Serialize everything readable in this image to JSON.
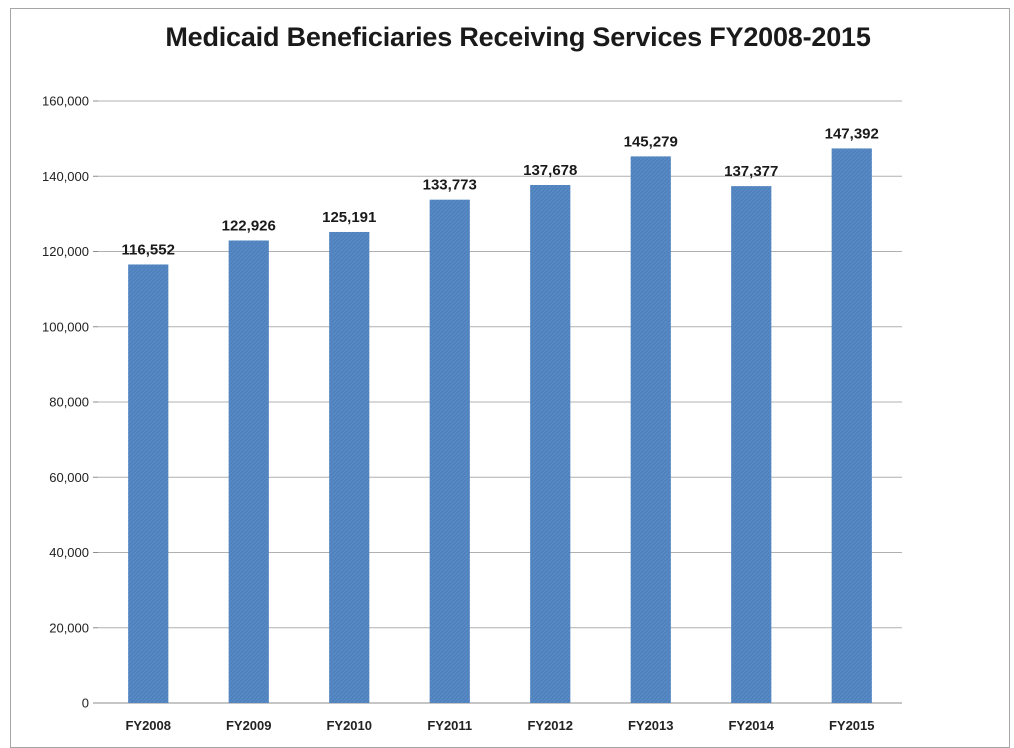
{
  "chart_data": {
    "type": "bar",
    "title": "Medicaid Beneficiaries Receiving Services FY2008-2015",
    "xlabel": "",
    "ylabel": "",
    "categories": [
      "FY2008",
      "FY2009",
      "FY2010",
      "FY2011",
      "FY2012",
      "FY2013",
      "FY2014",
      "FY2015"
    ],
    "values": [
      116552,
      122926,
      125191,
      133773,
      137678,
      145279,
      137377,
      147392
    ],
    "data_labels": [
      "116,552",
      "122,926",
      "125,191",
      "133,773",
      "137,678",
      "145,279",
      "137,377",
      "147,392"
    ],
    "ylim": [
      0,
      160000
    ],
    "yticks": [
      0,
      20000,
      40000,
      60000,
      80000,
      100000,
      120000,
      140000,
      160000
    ],
    "ytick_labels": [
      "0",
      "20,000",
      "40,000",
      "60,000",
      "80,000",
      "100,000",
      "120,000",
      "140,000",
      "160,000"
    ],
    "grid": true,
    "legend": "none",
    "bar_color": "#4f81bd"
  }
}
